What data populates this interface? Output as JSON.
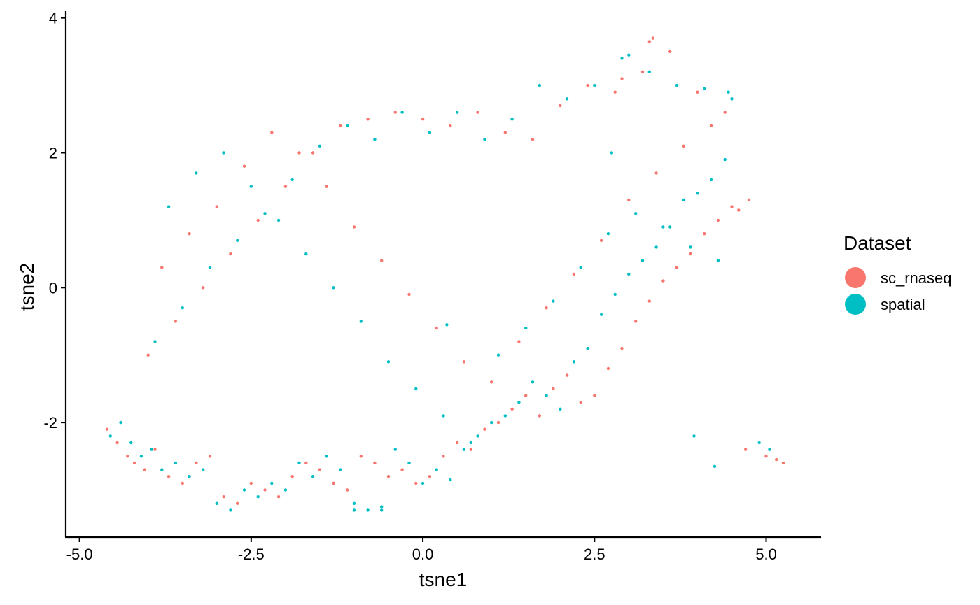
{
  "chart_data": {
    "type": "scatter",
    "title": "",
    "xlabel": "tsne1",
    "ylabel": "tsne2",
    "xlim": [
      -5.2,
      5.8
    ],
    "ylim": [
      -3.7,
      4.1
    ],
    "xticks": [
      -5.0,
      -2.5,
      0.0,
      2.5,
      5.0
    ],
    "xtick_labels": [
      "-5.0",
      "-2.5",
      "0.0",
      "2.5",
      "5.0"
    ],
    "yticks": [
      -2,
      0,
      2,
      4
    ],
    "ytick_labels": [
      "-2",
      "0",
      "2",
      "4"
    ],
    "grid": false,
    "legend": {
      "title": "Dataset",
      "placement": "right",
      "entries": [
        "sc_rnaseq",
        "spatial"
      ]
    },
    "series": [
      {
        "name": "sc_rnaseq",
        "color": "#F8766D",
        "x": [
          -4.6,
          -4.45,
          -4.3,
          -4.2,
          -4.05,
          -3.9,
          -3.7,
          -3.5,
          -3.3,
          -3.1,
          -2.9,
          -2.7,
          -2.5,
          -2.3,
          -2.1,
          -1.9,
          -1.7,
          -1.5,
          -1.3,
          -1.1,
          -0.9,
          -0.7,
          -0.5,
          -0.3,
          -0.1,
          0.1,
          0.3,
          0.5,
          0.7,
          0.9,
          1.1,
          1.3,
          1.5,
          1.7,
          1.9,
          2.1,
          2.3,
          2.5,
          2.7,
          2.9,
          3.1,
          3.3,
          3.5,
          3.7,
          3.9,
          4.1,
          4.3,
          4.5,
          4.6,
          4.75,
          -4.0,
          -3.6,
          -3.2,
          -2.8,
          -2.4,
          -2.0,
          -1.6,
          -1.2,
          -0.8,
          -0.4,
          0.0,
          0.4,
          0.8,
          1.2,
          1.6,
          2.0,
          2.4,
          2.8,
          3.2,
          3.6,
          4.0,
          4.4,
          -3.8,
          -3.4,
          -3.0,
          -2.6,
          -2.2,
          -1.8,
          -1.4,
          -1.0,
          -0.6,
          -0.2,
          0.2,
          0.6,
          1.0,
          1.4,
          1.8,
          2.2,
          2.6,
          3.0,
          3.4,
          3.8,
          4.2,
          4.7,
          5.0,
          5.15,
          5.25,
          3.3,
          3.35,
          2.9
        ],
        "y": [
          -2.1,
          -2.3,
          -2.5,
          -2.6,
          -2.7,
          -2.4,
          -2.8,
          -2.9,
          -2.6,
          -2.5,
          -3.1,
          -3.2,
          -2.9,
          -3.0,
          -3.1,
          -2.8,
          -2.6,
          -2.7,
          -2.9,
          -3.0,
          -2.5,
          -2.6,
          -2.8,
          -2.7,
          -2.9,
          -2.8,
          -2.5,
          -2.3,
          -2.4,
          -2.1,
          -2.0,
          -1.8,
          -1.6,
          -1.9,
          -1.5,
          -1.3,
          -1.7,
          -1.6,
          -1.2,
          -0.9,
          -0.5,
          -0.2,
          0.1,
          0.3,
          0.5,
          0.8,
          1.0,
          1.2,
          1.15,
          1.3,
          -1.0,
          -0.5,
          0.0,
          0.5,
          1.0,
          1.5,
          2.0,
          2.4,
          2.5,
          2.6,
          2.5,
          2.4,
          2.6,
          2.3,
          2.2,
          2.7,
          3.0,
          2.9,
          3.2,
          3.5,
          2.9,
          2.6,
          0.3,
          0.8,
          1.2,
          1.8,
          2.3,
          2.0,
          1.5,
          0.9,
          0.4,
          -0.1,
          -0.6,
          -1.1,
          -1.4,
          -0.8,
          -0.3,
          0.2,
          0.7,
          1.3,
          1.7,
          2.1,
          2.4,
          -2.4,
          -2.5,
          -2.55,
          -2.6,
          3.65,
          3.7,
          3.1
        ]
      },
      {
        "name": "spatial",
        "color": "#00BFC4",
        "x": [
          -4.55,
          -4.4,
          -4.25,
          -4.1,
          -3.95,
          -3.8,
          -3.6,
          -3.4,
          -3.2,
          -3.0,
          -2.8,
          -2.6,
          -2.4,
          -2.2,
          -2.0,
          -1.8,
          -1.6,
          -1.4,
          -1.2,
          -1.0,
          -0.8,
          -0.6,
          -0.4,
          -0.2,
          0.0,
          0.2,
          0.4,
          0.6,
          0.8,
          1.0,
          1.2,
          1.4,
          1.6,
          1.8,
          2.0,
          2.2,
          2.4,
          2.6,
          2.8,
          3.0,
          3.2,
          3.4,
          3.6,
          3.8,
          4.0,
          4.2,
          4.4,
          4.5,
          -3.9,
          -3.5,
          -3.1,
          -2.7,
          -2.3,
          -1.9,
          -1.5,
          -1.1,
          -0.7,
          -0.3,
          0.1,
          0.5,
          0.9,
          1.3,
          1.7,
          2.1,
          2.5,
          2.9,
          3.3,
          3.7,
          4.1,
          4.45,
          -3.7,
          -3.3,
          -2.9,
          -2.5,
          -2.1,
          -1.7,
          -1.3,
          -0.9,
          -0.5,
          -0.1,
          0.3,
          0.7,
          1.1,
          1.5,
          1.9,
          2.3,
          2.7,
          3.1,
          3.5,
          3.9,
          4.3,
          3.95,
          4.25,
          4.9,
          5.05,
          -1.0,
          -0.6,
          0.35,
          2.75,
          3.0
        ],
        "y": [
          -2.2,
          -2.0,
          -2.3,
          -2.5,
          -2.4,
          -2.7,
          -2.6,
          -2.8,
          -2.7,
          -3.2,
          -3.3,
          -3.0,
          -3.1,
          -2.9,
          -3.0,
          -2.6,
          -2.8,
          -2.5,
          -2.7,
          -3.2,
          -3.3,
          -3.25,
          -2.4,
          -2.6,
          -2.9,
          -2.7,
          -2.85,
          -2.4,
          -2.2,
          -2.0,
          -1.9,
          -1.7,
          -1.4,
          -1.6,
          -1.8,
          -1.1,
          -0.9,
          -0.4,
          -0.1,
          0.2,
          0.4,
          0.6,
          0.9,
          1.3,
          1.4,
          1.6,
          1.9,
          2.8,
          -0.8,
          -0.3,
          0.3,
          0.7,
          1.1,
          1.6,
          2.1,
          2.4,
          2.2,
          2.6,
          2.3,
          2.6,
          2.2,
          2.5,
          3.0,
          2.8,
          3.0,
          3.4,
          3.2,
          3.0,
          2.95,
          2.9,
          1.2,
          1.7,
          2.0,
          1.5,
          1.0,
          0.5,
          0.0,
          -0.5,
          -1.1,
          -1.5,
          -1.9,
          -2.3,
          -1.0,
          -0.6,
          -0.2,
          0.3,
          0.8,
          1.1,
          0.9,
          0.6,
          0.4,
          -2.2,
          -2.65,
          -2.3,
          -2.4,
          -3.3,
          -3.3,
          -0.55,
          2.0,
          3.45
        ]
      }
    ]
  }
}
